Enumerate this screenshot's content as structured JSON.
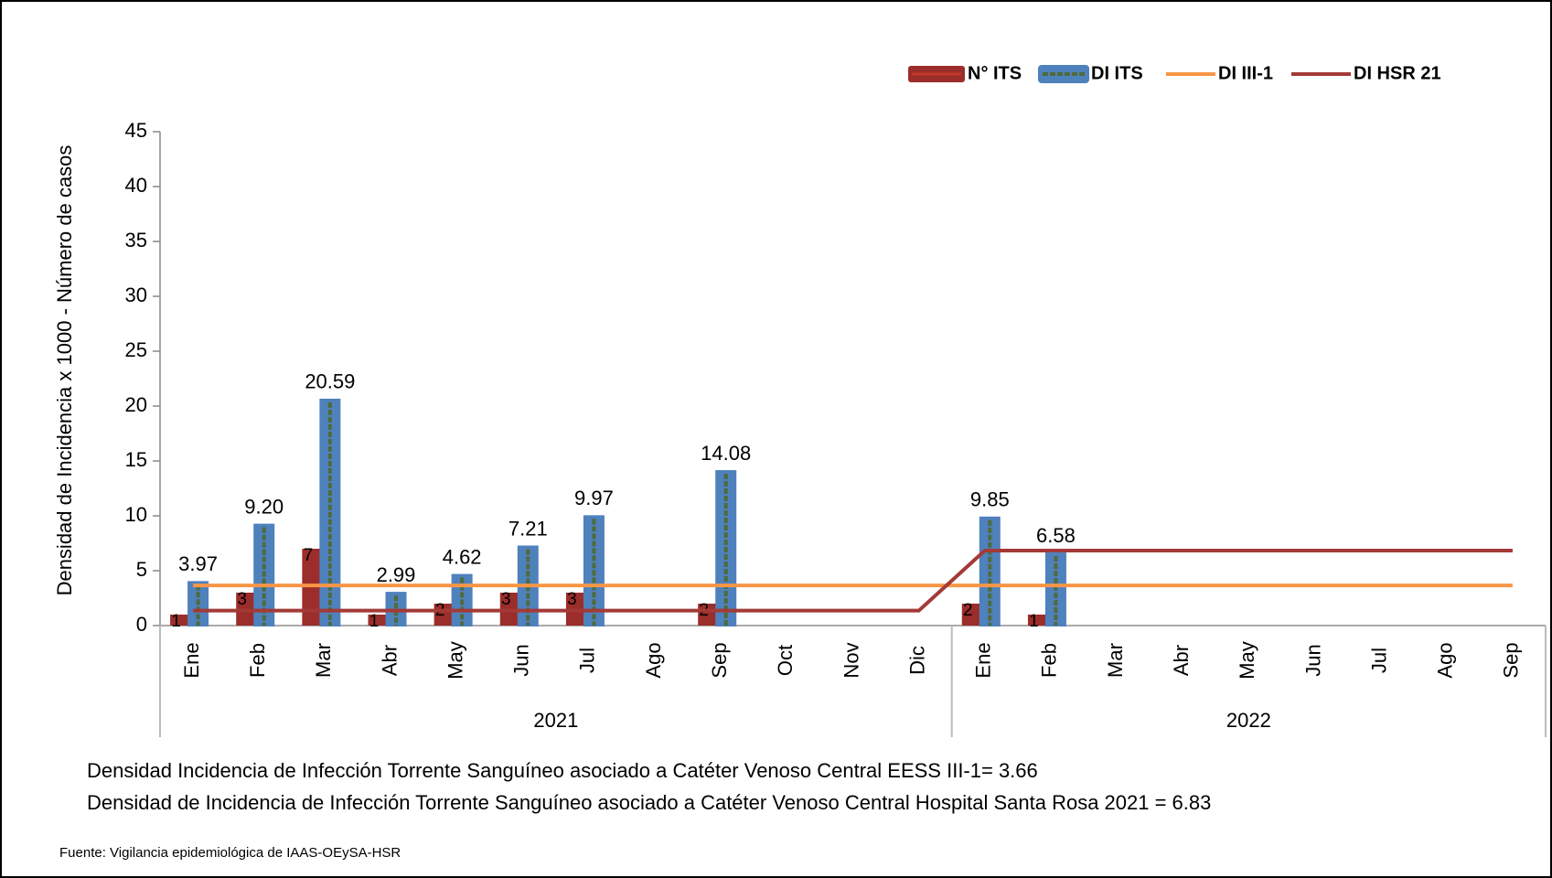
{
  "chart_data": {
    "type": "bar",
    "y_label": "Densidad de Incidencia x 1000 - Número de casos",
    "groups": [
      {
        "label": "2021",
        "categories": [
          "Ene",
          "Feb",
          "Mar",
          "Abr",
          "May",
          "Jun",
          "Jul",
          "Ago",
          "Sep",
          "Oct",
          "Nov",
          "Dic"
        ]
      },
      {
        "label": "2022",
        "categories": [
          "Ene",
          "Feb",
          "Mar",
          "Abr",
          "May",
          "Jun",
          "Jul",
          "Ago",
          "Sep"
        ]
      }
    ],
    "series": [
      {
        "name": "N° ITS",
        "type": "bar",
        "color": "#9b2d2a",
        "values": [
          1,
          3,
          7,
          1,
          2,
          3,
          3,
          null,
          2,
          null,
          null,
          null,
          2,
          1,
          null,
          null,
          null,
          null,
          null,
          null,
          null
        ]
      },
      {
        "name": "DI ITS",
        "type": "bar",
        "color": "#4f81bd",
        "inner_color": "#4f6b3a",
        "values": [
          3.97,
          9.2,
          20.59,
          2.99,
          4.62,
          7.21,
          9.97,
          null,
          14.08,
          null,
          null,
          null,
          9.85,
          6.58,
          null,
          null,
          null,
          null,
          null,
          null,
          null
        ],
        "value_labels": [
          "3.97",
          "9.20",
          "20.59",
          "2.99",
          "4.62",
          "7.21",
          "9.97",
          null,
          "14.08",
          null,
          null,
          null,
          "9.85",
          "6.58",
          null,
          null,
          null,
          null,
          null,
          null,
          null
        ]
      },
      {
        "name": "DI III-1",
        "type": "line",
        "color": "#f79646",
        "values": [
          3.66,
          3.66,
          3.66,
          3.66,
          3.66,
          3.66,
          3.66,
          3.66,
          3.66,
          3.66,
          3.66,
          3.66,
          3.66,
          3.66,
          3.66,
          3.66,
          3.66,
          3.66,
          3.66,
          3.66,
          3.66
        ]
      },
      {
        "name": "DI HSR 21",
        "type": "line",
        "color": "#a33a37",
        "values": [
          1.36,
          1.36,
          1.36,
          1.36,
          1.36,
          1.36,
          1.36,
          1.36,
          1.36,
          1.36,
          1.36,
          1.36,
          6.83,
          6.83,
          6.83,
          6.83,
          6.83,
          6.83,
          6.83,
          6.83,
          6.83
        ]
      }
    ],
    "ylim": [
      0,
      45
    ],
    "yticks": [
      0,
      5,
      10,
      15,
      20,
      25,
      30,
      35,
      40,
      45
    ],
    "notes": [
      "Densidad Incidencia de Infección Torrente Sanguíneo asociado a Catéter Venoso Central EESS III-1= 3.66",
      "Densidad de Incidencia de Infección Torrente Sanguíneo asociado a Catéter Venoso Central Hospital Santa Rosa 2021 = 6.83"
    ],
    "source": "Fuente: Vigilancia epidemiológica de IAAS-OEySA-HSR"
  }
}
